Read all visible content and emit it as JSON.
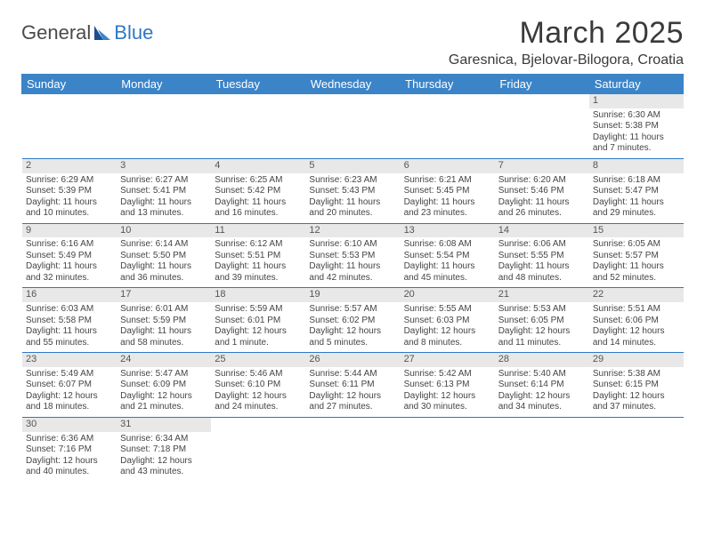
{
  "logo": {
    "text1": "General",
    "text2": "Blue"
  },
  "title": "March 2025",
  "location": "Garesnica, Bjelovar-Bilogora, Croatia",
  "colors": {
    "header_bg": "#3b84c8",
    "header_text": "#ffffff",
    "daynum_bg": "#e8e8e8",
    "rule": "#2f78c4",
    "body_text": "#444444"
  },
  "weekdays": [
    "Sunday",
    "Monday",
    "Tuesday",
    "Wednesday",
    "Thursday",
    "Friday",
    "Saturday"
  ],
  "weeks": [
    [
      {
        "n": "",
        "sr": "",
        "ss": "",
        "dl1": "",
        "dl2": ""
      },
      {
        "n": "",
        "sr": "",
        "ss": "",
        "dl1": "",
        "dl2": ""
      },
      {
        "n": "",
        "sr": "",
        "ss": "",
        "dl1": "",
        "dl2": ""
      },
      {
        "n": "",
        "sr": "",
        "ss": "",
        "dl1": "",
        "dl2": ""
      },
      {
        "n": "",
        "sr": "",
        "ss": "",
        "dl1": "",
        "dl2": ""
      },
      {
        "n": "",
        "sr": "",
        "ss": "",
        "dl1": "",
        "dl2": ""
      },
      {
        "n": "1",
        "sr": "Sunrise: 6:30 AM",
        "ss": "Sunset: 5:38 PM",
        "dl1": "Daylight: 11 hours",
        "dl2": "and 7 minutes."
      }
    ],
    [
      {
        "n": "2",
        "sr": "Sunrise: 6:29 AM",
        "ss": "Sunset: 5:39 PM",
        "dl1": "Daylight: 11 hours",
        "dl2": "and 10 minutes."
      },
      {
        "n": "3",
        "sr": "Sunrise: 6:27 AM",
        "ss": "Sunset: 5:41 PM",
        "dl1": "Daylight: 11 hours",
        "dl2": "and 13 minutes."
      },
      {
        "n": "4",
        "sr": "Sunrise: 6:25 AM",
        "ss": "Sunset: 5:42 PM",
        "dl1": "Daylight: 11 hours",
        "dl2": "and 16 minutes."
      },
      {
        "n": "5",
        "sr": "Sunrise: 6:23 AM",
        "ss": "Sunset: 5:43 PM",
        "dl1": "Daylight: 11 hours",
        "dl2": "and 20 minutes."
      },
      {
        "n": "6",
        "sr": "Sunrise: 6:21 AM",
        "ss": "Sunset: 5:45 PM",
        "dl1": "Daylight: 11 hours",
        "dl2": "and 23 minutes."
      },
      {
        "n": "7",
        "sr": "Sunrise: 6:20 AM",
        "ss": "Sunset: 5:46 PM",
        "dl1": "Daylight: 11 hours",
        "dl2": "and 26 minutes."
      },
      {
        "n": "8",
        "sr": "Sunrise: 6:18 AM",
        "ss": "Sunset: 5:47 PM",
        "dl1": "Daylight: 11 hours",
        "dl2": "and 29 minutes."
      }
    ],
    [
      {
        "n": "9",
        "sr": "Sunrise: 6:16 AM",
        "ss": "Sunset: 5:49 PM",
        "dl1": "Daylight: 11 hours",
        "dl2": "and 32 minutes."
      },
      {
        "n": "10",
        "sr": "Sunrise: 6:14 AM",
        "ss": "Sunset: 5:50 PM",
        "dl1": "Daylight: 11 hours",
        "dl2": "and 36 minutes."
      },
      {
        "n": "11",
        "sr": "Sunrise: 6:12 AM",
        "ss": "Sunset: 5:51 PM",
        "dl1": "Daylight: 11 hours",
        "dl2": "and 39 minutes."
      },
      {
        "n": "12",
        "sr": "Sunrise: 6:10 AM",
        "ss": "Sunset: 5:53 PM",
        "dl1": "Daylight: 11 hours",
        "dl2": "and 42 minutes."
      },
      {
        "n": "13",
        "sr": "Sunrise: 6:08 AM",
        "ss": "Sunset: 5:54 PM",
        "dl1": "Daylight: 11 hours",
        "dl2": "and 45 minutes."
      },
      {
        "n": "14",
        "sr": "Sunrise: 6:06 AM",
        "ss": "Sunset: 5:55 PM",
        "dl1": "Daylight: 11 hours",
        "dl2": "and 48 minutes."
      },
      {
        "n": "15",
        "sr": "Sunrise: 6:05 AM",
        "ss": "Sunset: 5:57 PM",
        "dl1": "Daylight: 11 hours",
        "dl2": "and 52 minutes."
      }
    ],
    [
      {
        "n": "16",
        "sr": "Sunrise: 6:03 AM",
        "ss": "Sunset: 5:58 PM",
        "dl1": "Daylight: 11 hours",
        "dl2": "and 55 minutes."
      },
      {
        "n": "17",
        "sr": "Sunrise: 6:01 AM",
        "ss": "Sunset: 5:59 PM",
        "dl1": "Daylight: 11 hours",
        "dl2": "and 58 minutes."
      },
      {
        "n": "18",
        "sr": "Sunrise: 5:59 AM",
        "ss": "Sunset: 6:01 PM",
        "dl1": "Daylight: 12 hours",
        "dl2": "and 1 minute."
      },
      {
        "n": "19",
        "sr": "Sunrise: 5:57 AM",
        "ss": "Sunset: 6:02 PM",
        "dl1": "Daylight: 12 hours",
        "dl2": "and 5 minutes."
      },
      {
        "n": "20",
        "sr": "Sunrise: 5:55 AM",
        "ss": "Sunset: 6:03 PM",
        "dl1": "Daylight: 12 hours",
        "dl2": "and 8 minutes."
      },
      {
        "n": "21",
        "sr": "Sunrise: 5:53 AM",
        "ss": "Sunset: 6:05 PM",
        "dl1": "Daylight: 12 hours",
        "dl2": "and 11 minutes."
      },
      {
        "n": "22",
        "sr": "Sunrise: 5:51 AM",
        "ss": "Sunset: 6:06 PM",
        "dl1": "Daylight: 12 hours",
        "dl2": "and 14 minutes."
      }
    ],
    [
      {
        "n": "23",
        "sr": "Sunrise: 5:49 AM",
        "ss": "Sunset: 6:07 PM",
        "dl1": "Daylight: 12 hours",
        "dl2": "and 18 minutes."
      },
      {
        "n": "24",
        "sr": "Sunrise: 5:47 AM",
        "ss": "Sunset: 6:09 PM",
        "dl1": "Daylight: 12 hours",
        "dl2": "and 21 minutes."
      },
      {
        "n": "25",
        "sr": "Sunrise: 5:46 AM",
        "ss": "Sunset: 6:10 PM",
        "dl1": "Daylight: 12 hours",
        "dl2": "and 24 minutes."
      },
      {
        "n": "26",
        "sr": "Sunrise: 5:44 AM",
        "ss": "Sunset: 6:11 PM",
        "dl1": "Daylight: 12 hours",
        "dl2": "and 27 minutes."
      },
      {
        "n": "27",
        "sr": "Sunrise: 5:42 AM",
        "ss": "Sunset: 6:13 PM",
        "dl1": "Daylight: 12 hours",
        "dl2": "and 30 minutes."
      },
      {
        "n": "28",
        "sr": "Sunrise: 5:40 AM",
        "ss": "Sunset: 6:14 PM",
        "dl1": "Daylight: 12 hours",
        "dl2": "and 34 minutes."
      },
      {
        "n": "29",
        "sr": "Sunrise: 5:38 AM",
        "ss": "Sunset: 6:15 PM",
        "dl1": "Daylight: 12 hours",
        "dl2": "and 37 minutes."
      }
    ],
    [
      {
        "n": "30",
        "sr": "Sunrise: 6:36 AM",
        "ss": "Sunset: 7:16 PM",
        "dl1": "Daylight: 12 hours",
        "dl2": "and 40 minutes."
      },
      {
        "n": "31",
        "sr": "Sunrise: 6:34 AM",
        "ss": "Sunset: 7:18 PM",
        "dl1": "Daylight: 12 hours",
        "dl2": "and 43 minutes."
      },
      {
        "n": "",
        "sr": "",
        "ss": "",
        "dl1": "",
        "dl2": ""
      },
      {
        "n": "",
        "sr": "",
        "ss": "",
        "dl1": "",
        "dl2": ""
      },
      {
        "n": "",
        "sr": "",
        "ss": "",
        "dl1": "",
        "dl2": ""
      },
      {
        "n": "",
        "sr": "",
        "ss": "",
        "dl1": "",
        "dl2": ""
      },
      {
        "n": "",
        "sr": "",
        "ss": "",
        "dl1": "",
        "dl2": ""
      }
    ]
  ]
}
